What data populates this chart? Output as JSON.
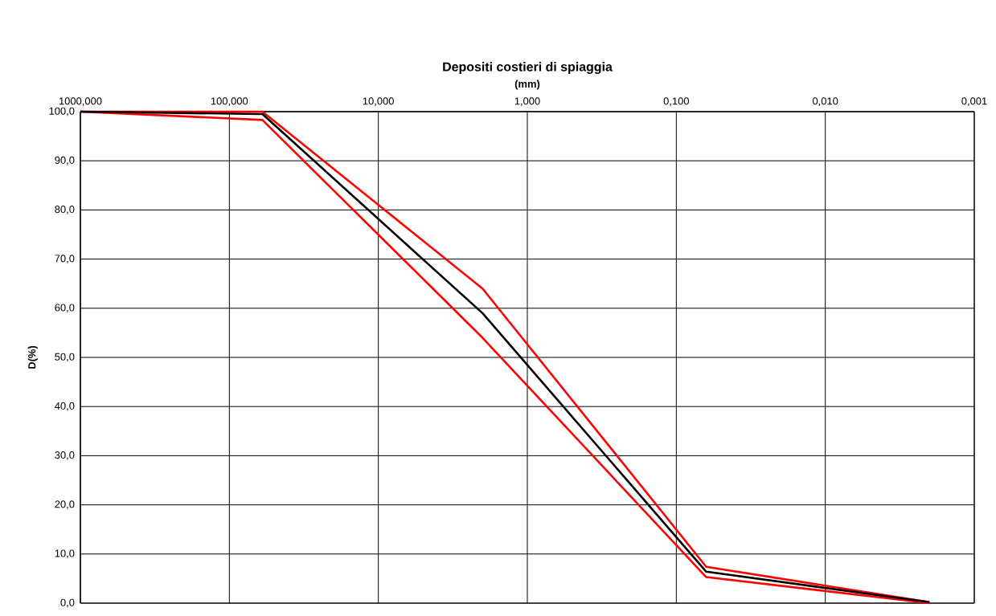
{
  "chart_data": {
    "type": "line",
    "title": "Depositi costieri di spiaggia",
    "xlabel": "(mm)",
    "ylabel": "D(%)",
    "log": "x",
    "grid": true,
    "marker": "none",
    "line_style": "solid",
    "xlim": [
      1000,
      0.001
    ],
    "ylim": [
      0,
      100
    ],
    "xticks": [
      {
        "value": 1000,
        "label": "1000,000"
      },
      {
        "value": 100,
        "label": "100,000"
      },
      {
        "value": 10,
        "label": "10,000"
      },
      {
        "value": 1,
        "label": "1,000"
      },
      {
        "value": 0.1,
        "label": "0,100"
      },
      {
        "value": 0.01,
        "label": "0,010"
      },
      {
        "value": 0.001,
        "label": "0,001"
      }
    ],
    "yticks": [
      {
        "value": 0,
        "label": "0,0"
      },
      {
        "value": 10,
        "label": "10,0"
      },
      {
        "value": 20,
        "label": "20,0"
      },
      {
        "value": 30,
        "label": "30,0"
      },
      {
        "value": 40,
        "label": "40,0"
      },
      {
        "value": 50,
        "label": "50,0"
      },
      {
        "value": 60,
        "label": "60,0"
      },
      {
        "value": 70,
        "label": "70,0"
      },
      {
        "value": 80,
        "label": "80,0"
      },
      {
        "value": 90,
        "label": "90,0"
      },
      {
        "value": 100,
        "label": "100,0"
      }
    ],
    "x": [
      1000,
      60,
      2,
      0.063,
      0.002
    ],
    "series": [
      {
        "color": "#ff0000",
        "values": [
          100,
          98.3,
          54,
          5.3,
          0
        ]
      },
      {
        "color": "#ff0000",
        "values": [
          100,
          100,
          64,
          7.4,
          0.2
        ]
      },
      {
        "color": "#000000",
        "values": [
          100,
          99.5,
          59,
          6.4,
          0.2
        ]
      }
    ]
  }
}
